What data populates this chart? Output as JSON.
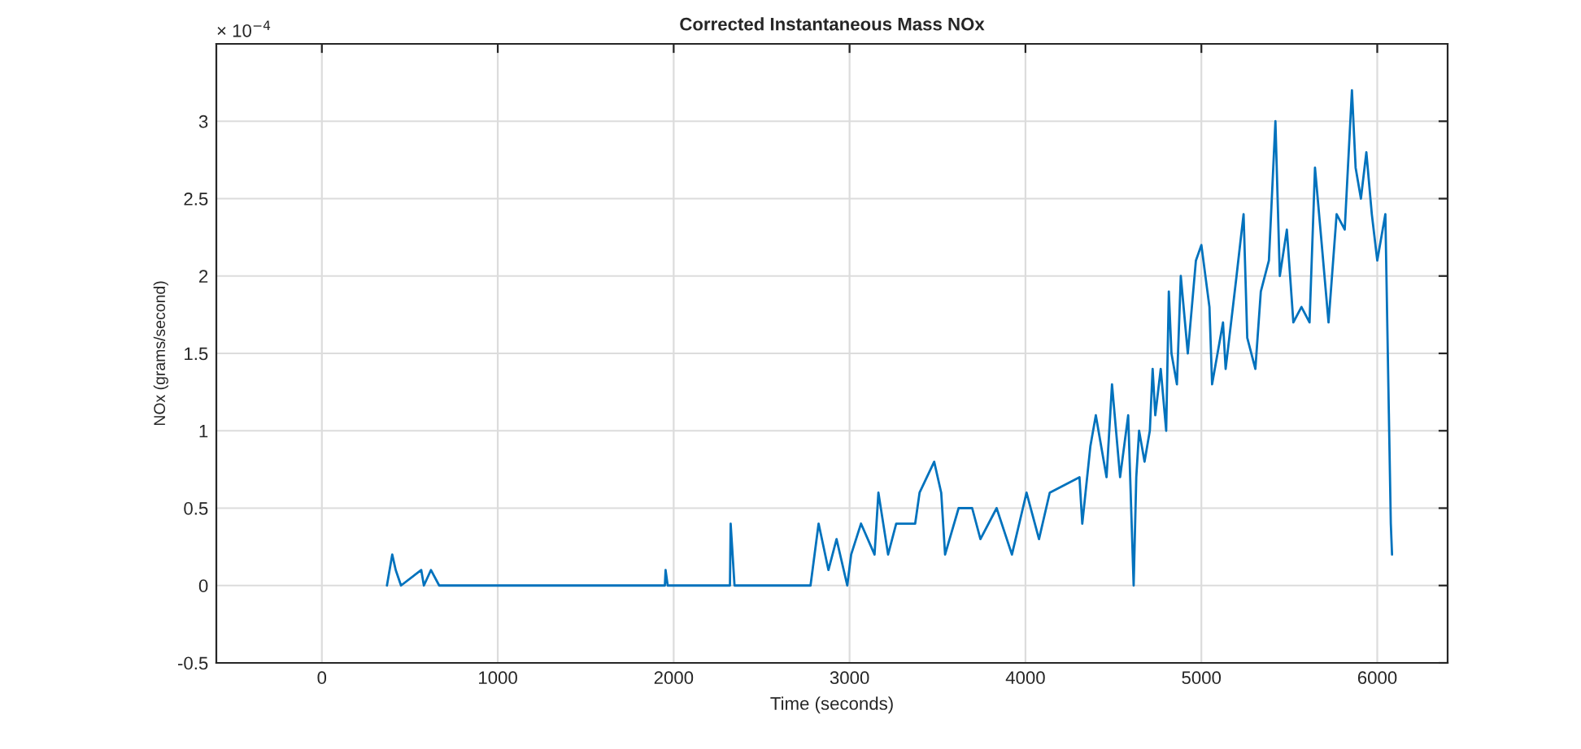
{
  "chart_data": {
    "type": "line",
    "title": "Corrected Instantaneous Mass NOx",
    "xlabel": "Time (seconds)",
    "ylabel": "NOx (grams/second)",
    "annotations": [
      "× 10$^{−4}$"
    ],
    "x": [
      370,
      400,
      420,
      450,
      565,
      580,
      620,
      667,
      1950,
      1954,
      1966,
      2320,
      2324,
      2346,
      2778,
      2824,
      2880,
      2926,
      2987,
      3009,
      3065,
      3142,
      3164,
      3219,
      3265,
      3373,
      3398,
      3481,
      3521,
      3543,
      3620,
      3697,
      3744,
      3836,
      3923,
      4006,
      4077,
      4138,
      4307,
      4323,
      4369,
      4400,
      4461,
      4492,
      4538,
      4584,
      4615,
      4630,
      4646,
      4677,
      4707,
      4723,
      4738,
      4769,
      4800,
      4815,
      4830,
      4861,
      4883,
      4923,
      4969,
      5000,
      5046,
      5061,
      5123,
      5138,
      5200,
      5240,
      5261,
      5307,
      5338,
      5384,
      5421,
      5446,
      5486,
      5523,
      5569,
      5615,
      5646,
      5677,
      5723,
      5769,
      5815,
      5856,
      5877,
      5907,
      5938,
      5969,
      6000,
      6046,
      6077,
      6084
    ],
    "series": [
      {
        "color": "#0072bd",
        "values": [
          0,
          0.2,
          0.1,
          0,
          0.1,
          0,
          0.1,
          0,
          0,
          0.1,
          0,
          0,
          0.4,
          0,
          0,
          0.4,
          0.1,
          0.3,
          0,
          0.2,
          0.4,
          0.2,
          0.6,
          0.2,
          0.4,
          0.4,
          0.6,
          0.8,
          0.6,
          0.2,
          0.5,
          0.5,
          0.3,
          0.5,
          0.2,
          0.6,
          0.3,
          0.6,
          0.7,
          0.4,
          0.9,
          1.1,
          0.7,
          1.3,
          0.7,
          1.1,
          0,
          0.7,
          1.0,
          0.8,
          1.0,
          1.4,
          1.1,
          1.4,
          1.0,
          1.9,
          1.5,
          1.3,
          2.0,
          1.5,
          2.1,
          2.2,
          1.8,
          1.3,
          1.7,
          1.4,
          2.0,
          2.4,
          1.6,
          1.4,
          1.9,
          2.1,
          3.0,
          2.0,
          2.3,
          1.7,
          1.8,
          1.7,
          2.7,
          2.3,
          1.7,
          2.4,
          2.3,
          3.2,
          2.7,
          2.5,
          2.8,
          2.4,
          2.1,
          2.4,
          0.4,
          0.2
        ]
      }
    ],
    "xlim": [
      -600,
      6400
    ],
    "ylim": [
      -0.5,
      3.5
    ],
    "xticks": [
      0,
      1000,
      2000,
      3000,
      4000,
      5000,
      6000
    ],
    "yticks": [
      -0.5,
      0,
      0.5,
      1,
      1.5,
      2,
      2.5,
      3
    ],
    "grid": true,
    "marker": "none",
    "line_style": "solid"
  }
}
